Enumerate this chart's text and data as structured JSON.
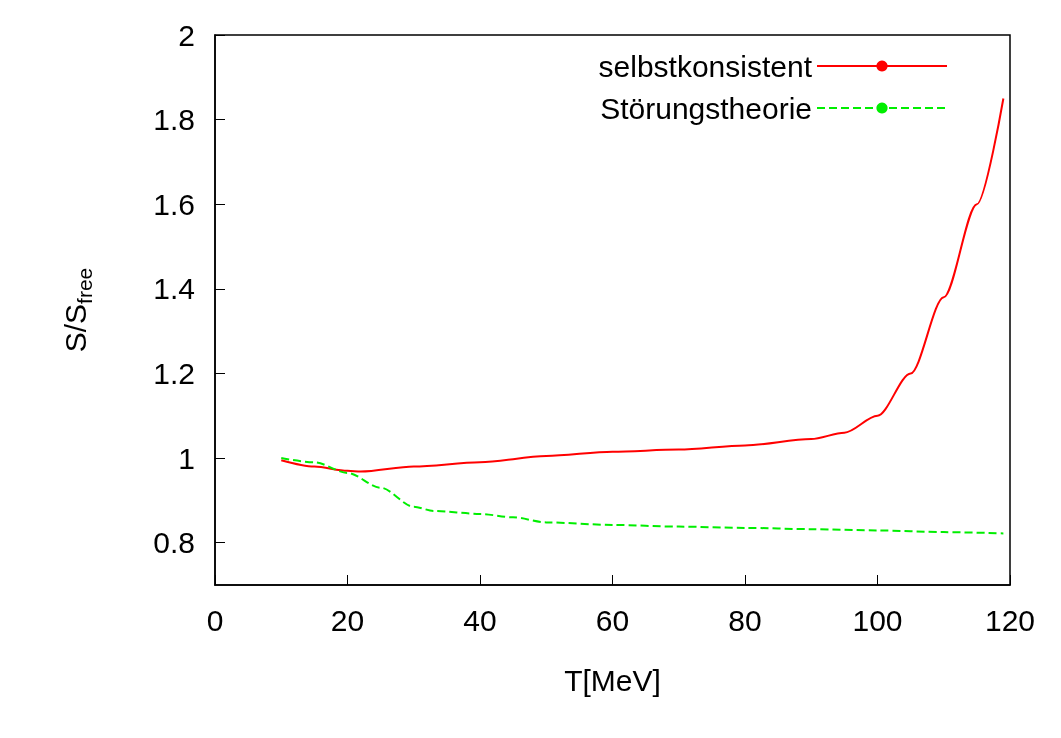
{
  "chart_data": {
    "type": "line",
    "xlabel": "T[MeV]",
    "ylabel": "S/S$_{free}$",
    "xlim": [
      0,
      120
    ],
    "xticks": [
      0,
      20,
      40,
      60,
      80,
      100,
      120
    ],
    "ylim": [
      0.7,
      2
    ],
    "yticks": [
      0.8,
      1,
      1.2,
      1.4,
      1.6,
      1.8,
      2
    ],
    "grid": false,
    "legend": "top right",
    "marker": "none",
    "series": [
      {
        "name": "selbstkonsistent",
        "color": "#ff0000",
        "line_style": "solid",
        "x": [
          10,
          15,
          20,
          22,
          30,
          40,
          50,
          60,
          70,
          80,
          90,
          95,
          100,
          105,
          110,
          115,
          119
        ],
        "values": [
          0.995,
          0.98,
          0.97,
          0.968,
          0.98,
          0.99,
          1.005,
          1.015,
          1.02,
          1.03,
          1.045,
          1.06,
          1.1,
          1.2,
          1.38,
          1.6,
          1.85
        ]
      },
      {
        "name": "Störungstheorie",
        "color": "#00ee00",
        "line_style": "dashed",
        "x": [
          10,
          15,
          20,
          25,
          30,
          33,
          40,
          45,
          50,
          60,
          70,
          80,
          90,
          100,
          110,
          119
        ],
        "values": [
          1.0,
          0.99,
          0.965,
          0.93,
          0.885,
          0.875,
          0.868,
          0.86,
          0.848,
          0.842,
          0.838,
          0.835,
          0.832,
          0.829,
          0.825,
          0.822
        ]
      }
    ]
  }
}
